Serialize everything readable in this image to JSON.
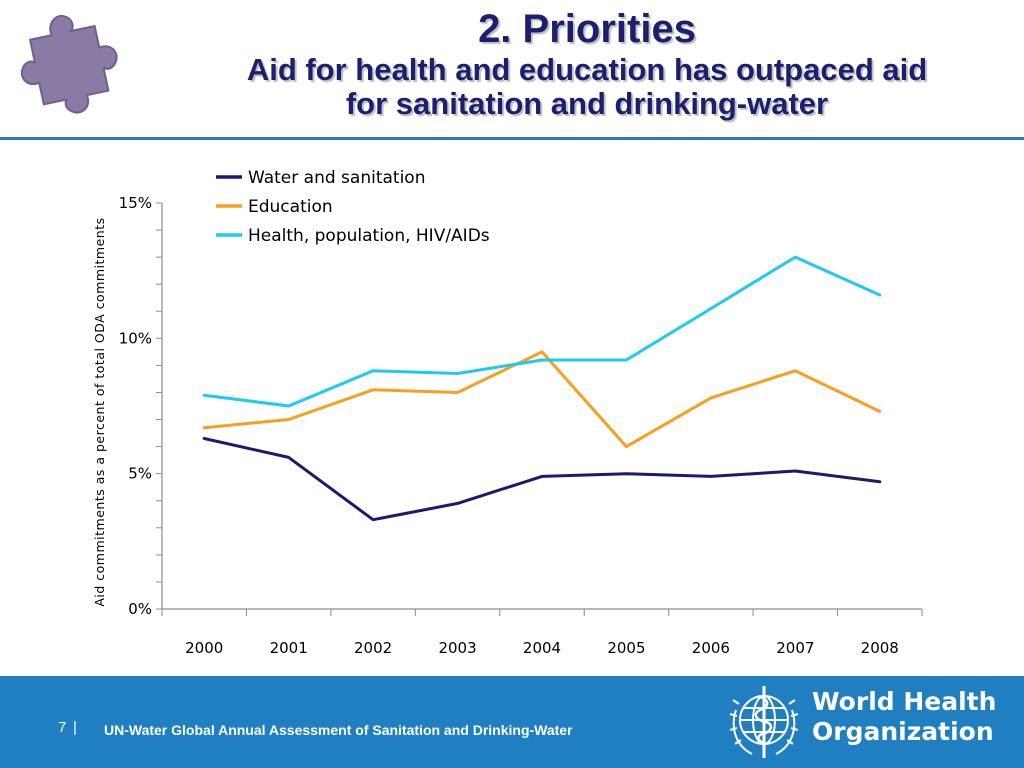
{
  "slide": {
    "title": "2. Priorities",
    "subtitle_line1": "Aid for health and education has outpaced aid",
    "subtitle_line2": "for sanitation and drinking-water"
  },
  "footer": {
    "page_number": "7",
    "separator": "|",
    "text": "UN-Water Global Annual Assessment of Sanitation and Drinking-Water",
    "org_line1": "World Health",
    "org_line2": "Organization"
  },
  "icons": {
    "puzzle": "puzzle-piece-icon",
    "who": "who-emblem-icon"
  },
  "chart_data": {
    "type": "line",
    "title": "",
    "xlabel": "",
    "ylabel": "Aid commitments as a percent of total ODA commitments",
    "categories": [
      "2000",
      "2001",
      "2002",
      "2003",
      "2004",
      "2005",
      "2006",
      "2007",
      "2008"
    ],
    "y_ticks": [
      "0%",
      "5%",
      "10%",
      "15%"
    ],
    "ylim": [
      0,
      15
    ],
    "legend_position": "top-center",
    "grid": false,
    "series": [
      {
        "name": "Water and sanitation",
        "color": "#1a1a6e",
        "values": [
          6.3,
          5.6,
          3.3,
          3.9,
          4.9,
          5.0,
          4.9,
          5.1,
          4.7
        ]
      },
      {
        "name": "Education",
        "color": "#f7a01d",
        "values": [
          6.7,
          7.0,
          8.1,
          8.0,
          9.5,
          6.0,
          7.8,
          8.8,
          7.3
        ]
      },
      {
        "name": "Health, population, HIV/AIDs",
        "color": "#1ecbf0",
        "values": [
          7.9,
          7.5,
          8.8,
          8.7,
          9.2,
          9.2,
          11.1,
          13.0,
          11.6
        ]
      }
    ]
  }
}
